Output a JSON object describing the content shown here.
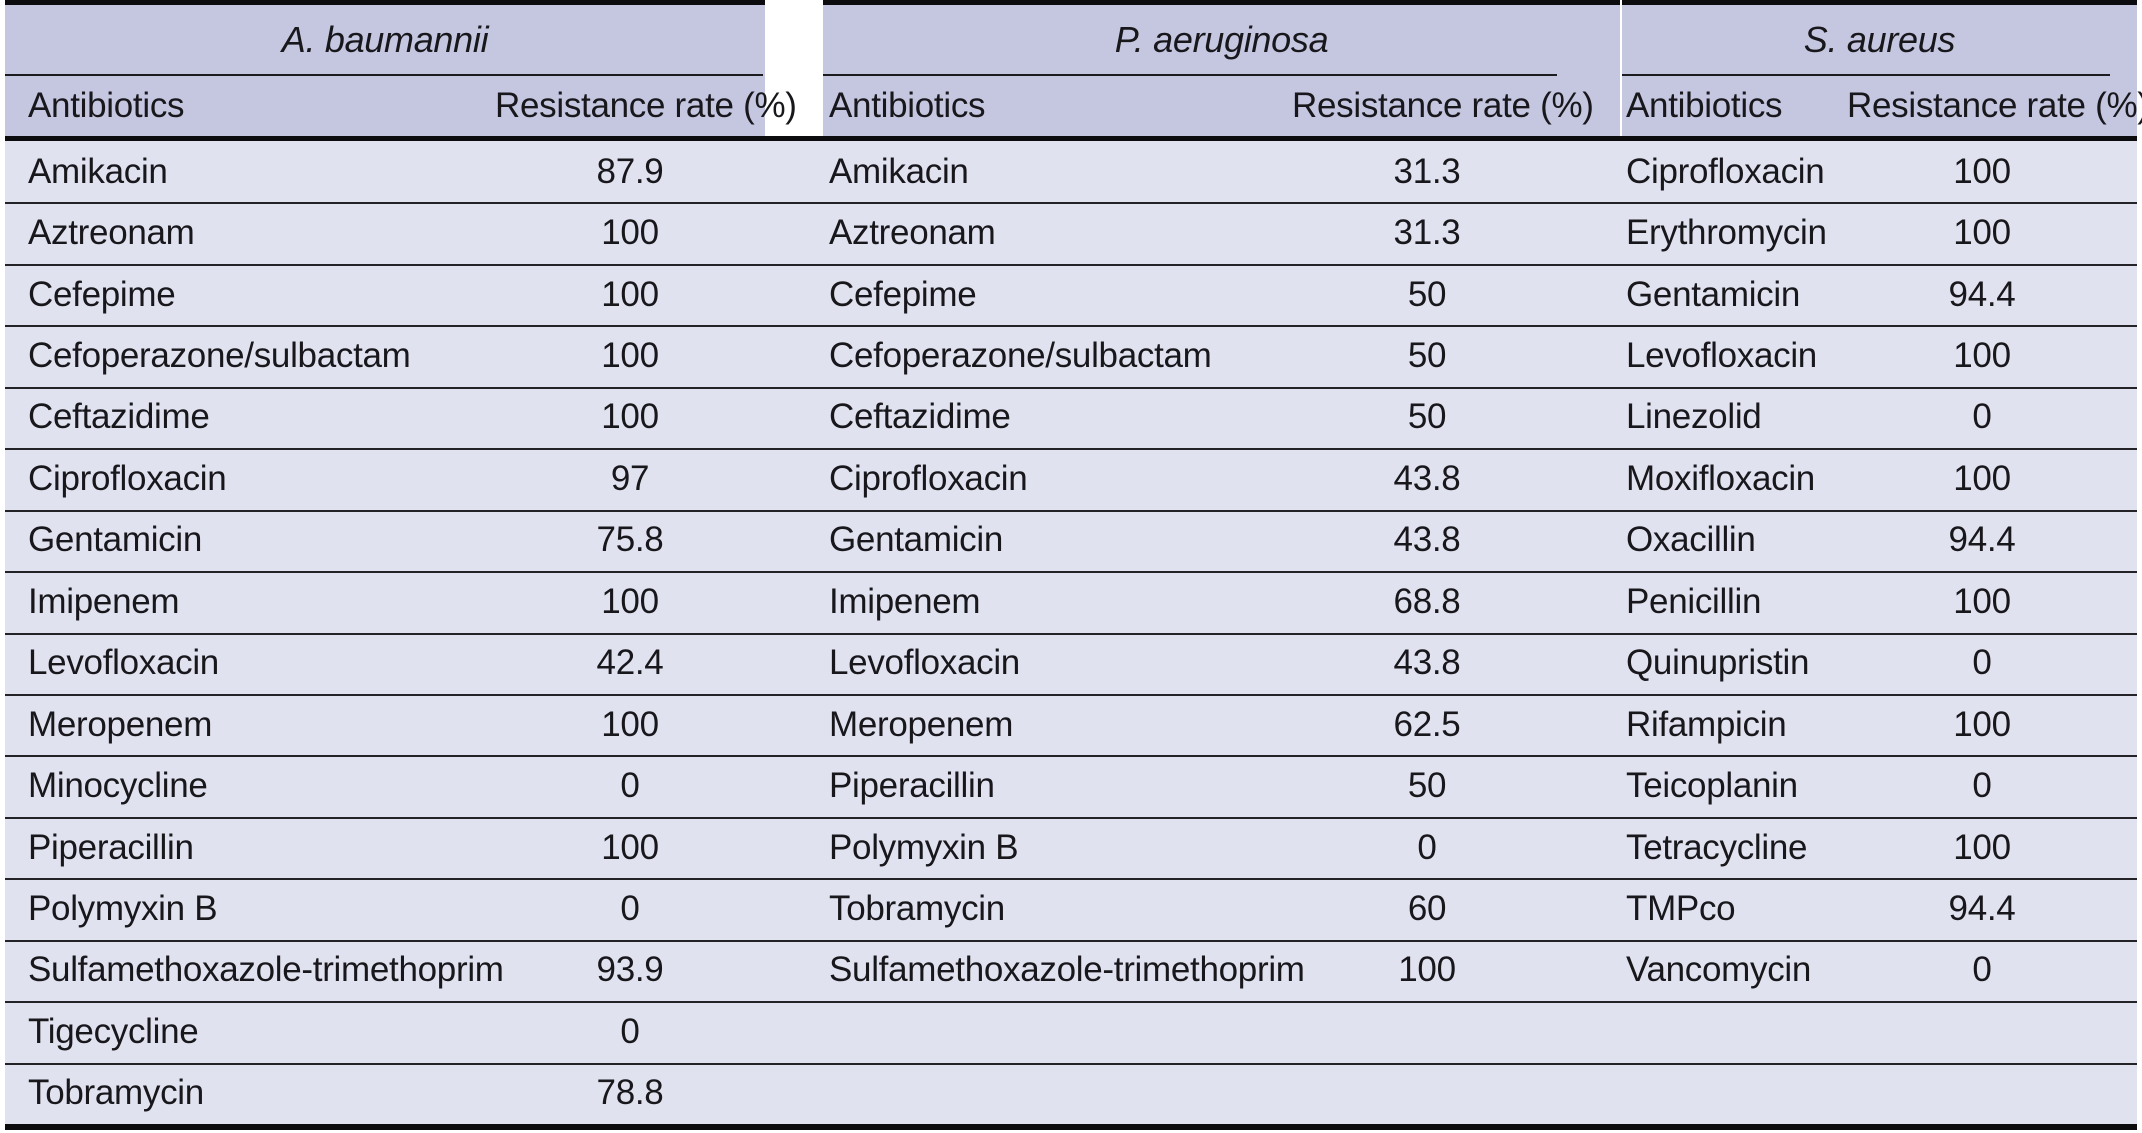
{
  "colors": {
    "header_band": "#c5c6e0",
    "row_background": "#e1e2ef",
    "thin_line": "#232327",
    "thick_line": "#0c0c0e",
    "page_background": "#ffffff"
  },
  "groups": [
    {
      "species": "A. baumannii",
      "header": {
        "antibiotics": "Antibiotics",
        "rate": "Resistance rate (%)"
      },
      "rows": [
        {
          "name": "Amikacin",
          "rate": "87.9"
        },
        {
          "name": "Aztreonam",
          "rate": "100"
        },
        {
          "name": "Cefepime",
          "rate": "100"
        },
        {
          "name": "Cefoperazone/sulbactam",
          "rate": "100"
        },
        {
          "name": "Ceftazidime",
          "rate": "100"
        },
        {
          "name": "Ciprofloxacin",
          "rate": "97"
        },
        {
          "name": "Gentamicin",
          "rate": "75.8"
        },
        {
          "name": "Imipenem",
          "rate": "100"
        },
        {
          "name": "Levofloxacin",
          "rate": "42.4"
        },
        {
          "name": "Meropenem",
          "rate": "100"
        },
        {
          "name": "Minocycline",
          "rate": "0"
        },
        {
          "name": "Piperacillin",
          "rate": "100"
        },
        {
          "name": "Polymyxin B",
          "rate": "0"
        },
        {
          "name": "Sulfamethoxazole-trimethoprim",
          "rate": "93.9"
        },
        {
          "name": "Tigecycline",
          "rate": "0"
        },
        {
          "name": "Tobramycin",
          "rate": "78.8"
        }
      ]
    },
    {
      "species": "P. aeruginosa",
      "header": {
        "antibiotics": "Antibiotics",
        "rate": "Resistance rate (%)"
      },
      "rows": [
        {
          "name": "Amikacin",
          "rate": "31.3"
        },
        {
          "name": "Aztreonam",
          "rate": "31.3"
        },
        {
          "name": "Cefepime",
          "rate": "50"
        },
        {
          "name": "Cefoperazone/sulbactam",
          "rate": "50"
        },
        {
          "name": "Ceftazidime",
          "rate": "50"
        },
        {
          "name": "Ciprofloxacin",
          "rate": "43.8"
        },
        {
          "name": "Gentamicin",
          "rate": "43.8"
        },
        {
          "name": "Imipenem",
          "rate": "68.8"
        },
        {
          "name": "Levofloxacin",
          "rate": "43.8"
        },
        {
          "name": "Meropenem",
          "rate": "62.5"
        },
        {
          "name": "Piperacillin",
          "rate": "50"
        },
        {
          "name": "Polymyxin B",
          "rate": "0"
        },
        {
          "name": "Tobramycin",
          "rate": "60"
        },
        {
          "name": "Sulfamethoxazole-trimethoprim",
          "rate": "100"
        },
        {
          "name": "",
          "rate": ""
        },
        {
          "name": "",
          "rate": ""
        }
      ]
    },
    {
      "species": "S. aureus",
      "header": {
        "antibiotics": "Antibiotics",
        "rate": "Resistance rate (%)"
      },
      "rows": [
        {
          "name": "Ciprofloxacin",
          "rate": "100"
        },
        {
          "name": "Erythromycin",
          "rate": "100"
        },
        {
          "name": "Gentamicin",
          "rate": "94.4"
        },
        {
          "name": "Levofloxacin",
          "rate": "100"
        },
        {
          "name": "Linezolid",
          "rate": "0"
        },
        {
          "name": "Moxifloxacin",
          "rate": "100"
        },
        {
          "name": "Oxacillin",
          "rate": "94.4"
        },
        {
          "name": "Penicillin",
          "rate": "100"
        },
        {
          "name": "Quinupristin",
          "rate": "0"
        },
        {
          "name": "Rifampicin",
          "rate": "100"
        },
        {
          "name": "Teicoplanin",
          "rate": "0"
        },
        {
          "name": "Tetracycline",
          "rate": "100"
        },
        {
          "name": "TMPco",
          "rate": "94.4"
        },
        {
          "name": "Vancomycin",
          "rate": "0"
        },
        {
          "name": "",
          "rate": ""
        },
        {
          "name": "",
          "rate": ""
        }
      ]
    }
  ]
}
